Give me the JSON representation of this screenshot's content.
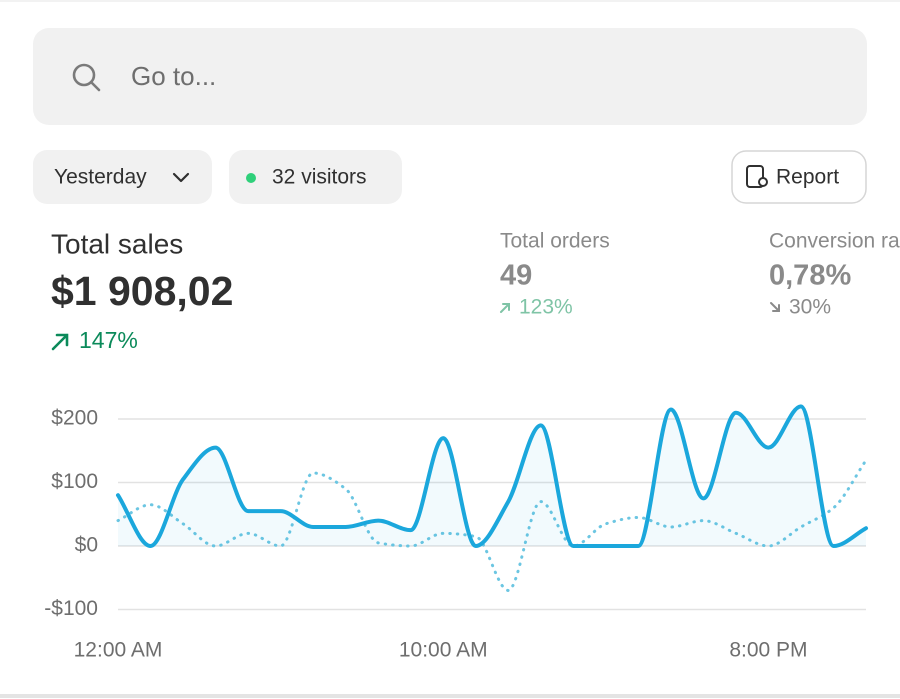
{
  "search": {
    "placeholder": "Go to..."
  },
  "filters": {
    "date": "Yesterday",
    "visitors": "32 visitors",
    "report": "Report"
  },
  "metrics": [
    {
      "label": "Total sales",
      "value": "$1 908,02",
      "change": "147%"
    },
    {
      "label": "Total orders",
      "value": "49",
      "change": "123%"
    },
    {
      "label": "Conversion rate",
      "value": "0,78%",
      "change": "30%"
    }
  ],
  "chart_data": {
    "type": "line",
    "categories": [
      "12:00 AM",
      null,
      null,
      null,
      null,
      null,
      null,
      null,
      null,
      null,
      "10:00 AM",
      null,
      null,
      null,
      null,
      null,
      null,
      null,
      null,
      null,
      "8:00 PM",
      null,
      null,
      null
    ],
    "series": [
      {
        "color": "#1ba7dc",
        "dashed": false,
        "fill": true,
        "values": [
          80,
          0,
          105,
          155,
          55,
          55,
          30,
          30,
          40,
          25,
          170,
          0,
          70,
          190,
          0,
          0,
          0,
          215,
          75,
          210,
          155,
          220,
          0,
          28
        ]
      },
      {
        "color": "#6cc6e2",
        "dashed": true,
        "fill": false,
        "values": [
          40,
          65,
          35,
          0,
          20,
          0,
          115,
          90,
          5,
          0,
          20,
          15,
          -70,
          70,
          0,
          35,
          45,
          30,
          40,
          20,
          0,
          30,
          60,
          135
        ]
      }
    ],
    "ylim": [
      -100,
      230
    ],
    "yticks": [
      {
        "value": -100,
        "label": "-$100"
      },
      {
        "value": 0,
        "label": "$0"
      },
      {
        "value": 100,
        "label": "$100"
      },
      {
        "value": 200,
        "label": "$200"
      }
    ],
    "grid": true
  }
}
